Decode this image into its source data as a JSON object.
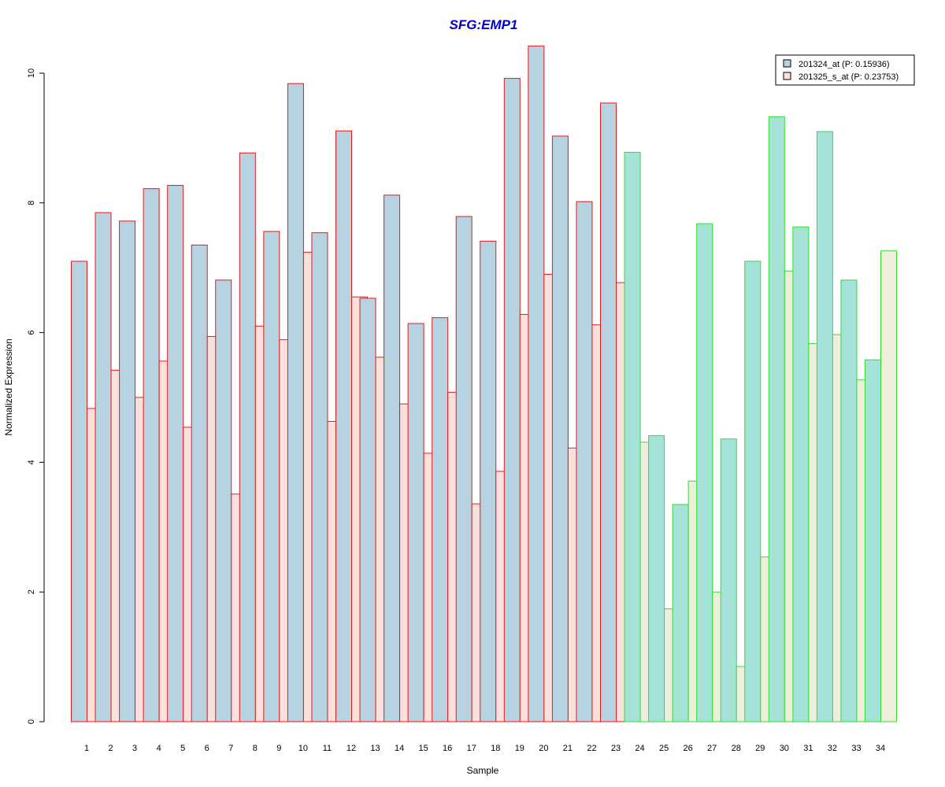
{
  "chart_data": {
    "type": "bar",
    "title": "SFG:EMP1",
    "xlabel": "Sample",
    "ylabel": "Normalized Expression",
    "ylim": [
      0,
      10.4
    ],
    "yticks": [
      0,
      2,
      4,
      6,
      8,
      10
    ],
    "grid": false,
    "legend_position": "top-right",
    "categories": [
      "1",
      "2",
      "3",
      "4",
      "5",
      "6",
      "7",
      "8",
      "9",
      "10",
      "11",
      "12",
      "13",
      "14",
      "15",
      "16",
      "17",
      "18",
      "19",
      "20",
      "21",
      "22",
      "23",
      "24",
      "25",
      "26",
      "27",
      "28",
      "29",
      "30",
      "31",
      "32",
      "33",
      "34"
    ],
    "series": [
      {
        "name": "201324_at (P: 0.15936)",
        "values": [
          7.1,
          7.85,
          7.72,
          8.22,
          8.27,
          7.35,
          6.81,
          8.77,
          7.56,
          9.84,
          7.54,
          9.11,
          6.53,
          8.12,
          6.14,
          6.23,
          7.79,
          7.41,
          9.92,
          10.42,
          9.03,
          8.02,
          9.54,
          8.78,
          4.41,
          3.35,
          7.68,
          4.36,
          7.1,
          9.33,
          7.63,
          9.1,
          6.81,
          5.58
        ]
      },
      {
        "name": "201325_s_at (P: 0.23753)",
        "values": [
          4.83,
          5.42,
          5.0,
          5.56,
          4.54,
          5.94,
          3.51,
          6.1,
          5.89,
          7.24,
          4.63,
          6.55,
          5.62,
          4.9,
          4.14,
          5.08,
          3.36,
          3.86,
          6.28,
          6.9,
          4.22,
          6.12,
          6.77,
          4.31,
          1.74,
          3.71,
          2.0,
          0.85,
          2.54,
          6.95,
          5.83,
          5.97,
          5.27,
          7.26
        ]
      }
    ],
    "group_split_after": 23,
    "colors": {
      "title": "#0000cc",
      "series1_fill_group1": "#b7d3e1",
      "series2_fill_group1": "#fbe0dc",
      "border_group1": "#e31a1c",
      "series1_fill_group2": "#a5e3d9",
      "series2_fill_group2": "#eeeedc",
      "border_group2": "#33dd33",
      "legend_swatch1": "#b7d3e1",
      "legend_swatch2": "#fbe0dc"
    }
  }
}
